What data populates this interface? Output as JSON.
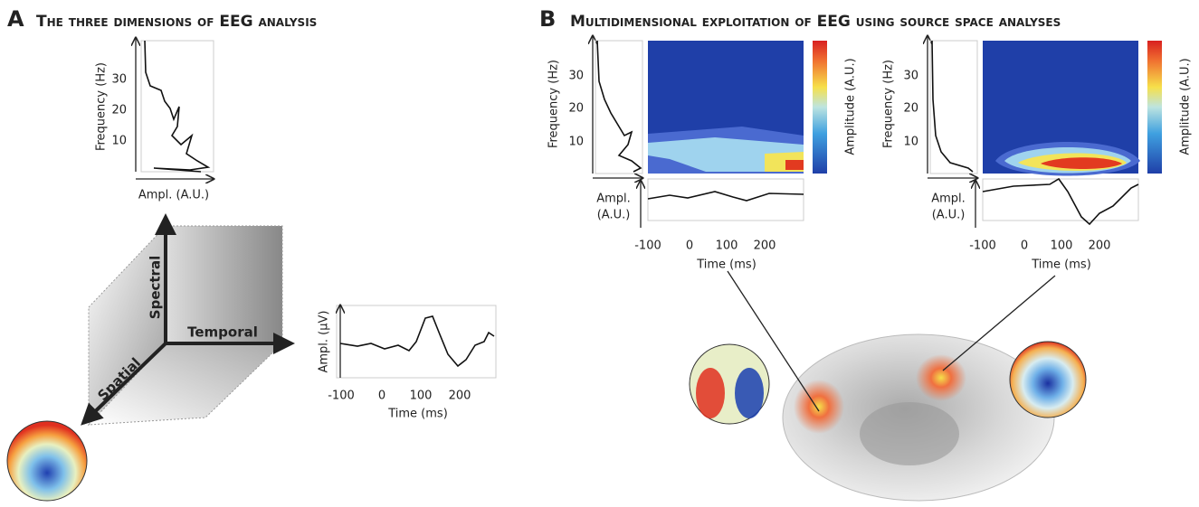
{
  "panel_a": {
    "label": "A",
    "title": "The three dimensions of EEG analysis",
    "spectrum": {
      "y_label": "Frequency (Hz)",
      "yticks": [
        30,
        20,
        10
      ],
      "x_label": "Ampl. (A.U.)"
    },
    "axes": {
      "spectral": "Spectral",
      "temporal": "Temporal",
      "spatial": "Spatial"
    },
    "erp": {
      "y_label": "Ampl. (µV)",
      "xticks": [
        -100,
        0,
        100,
        200
      ],
      "x_label": "Time (ms)"
    }
  },
  "panel_b": {
    "label": "B",
    "title": "Multidimensional exploitation of EEG using source space analyses",
    "plots": [
      {
        "y_label": "Frequency (Hz)",
        "yticks": [
          30,
          20,
          10
        ],
        "colorbar_label": "Amplitude (A.U.)",
        "ampl_label": [
          "Ampl.",
          "(A.U.)"
        ],
        "xticks": [
          -100,
          0,
          100,
          200
        ],
        "x_label": "Time (ms)"
      },
      {
        "y_label": "Frequency (Hz)",
        "yticks": [
          30,
          20,
          10
        ],
        "colorbar_label": "Amplitude (A.U.)",
        "ampl_label": [
          "Ampl.",
          "(A.U.)"
        ],
        "xticks": [
          -100,
          0,
          100,
          200
        ],
        "x_label": "Time (ms)"
      }
    ]
  }
}
